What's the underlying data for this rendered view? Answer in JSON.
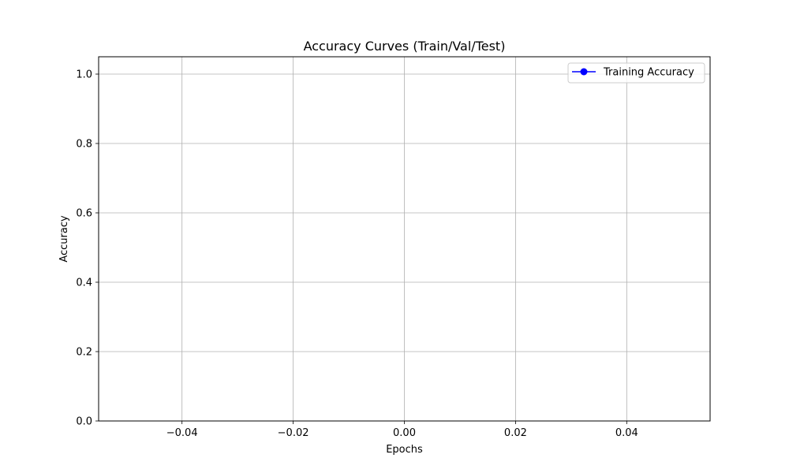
{
  "chart_data": {
    "type": "line",
    "title": "Accuracy Curves (Train/Val/Test)",
    "xlabel": "Epochs",
    "ylabel": "Accuracy",
    "xlim": [
      -0.055,
      0.055
    ],
    "ylim": [
      0.0,
      1.05
    ],
    "x_ticks": [
      -0.04,
      -0.02,
      0.0,
      0.02,
      0.04
    ],
    "x_tick_labels": [
      "−0.04",
      "−0.02",
      "0.00",
      "0.02",
      "0.04"
    ],
    "y_ticks": [
      0.0,
      0.2,
      0.4,
      0.6,
      0.8,
      1.0
    ],
    "y_tick_labels": [
      "0.0",
      "0.2",
      "0.4",
      "0.6",
      "0.8",
      "1.0"
    ],
    "grid": true,
    "legend_position": "top-right",
    "series": [
      {
        "name": "Training Accuracy",
        "color": "#0000ff",
        "marker": "circle",
        "x": [],
        "y": []
      }
    ]
  }
}
